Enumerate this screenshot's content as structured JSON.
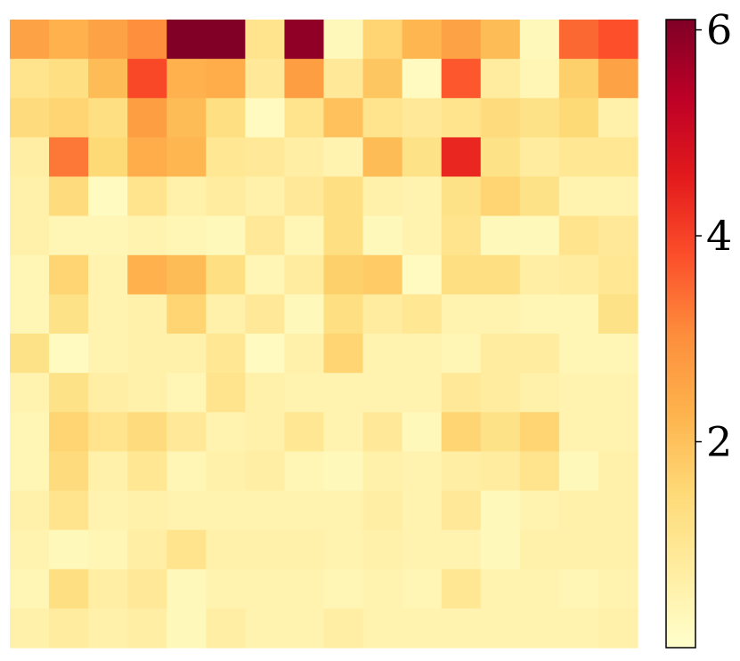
{
  "chart_data": {
    "type": "heatmap",
    "colormap": "YlOrRd",
    "rows": 16,
    "cols": 16,
    "vmin": 0,
    "vmax": 6.1,
    "colorbar": {
      "ticks": [
        2,
        4,
        6
      ],
      "tick_labels": [
        "2",
        "4",
        "6"
      ]
    },
    "values": [
      [
        2.6,
        2.3,
        2.6,
        3.0,
        6.1,
        6.1,
        1.1,
        5.9,
        0.3,
        1.6,
        2.2,
        2.6,
        2.1,
        0.3,
        3.5,
        3.8
      ],
      [
        1.1,
        1.3,
        2.1,
        3.9,
        2.3,
        2.4,
        0.9,
        2.7,
        0.9,
        1.9,
        0.2,
        3.7,
        0.8,
        0.4,
        1.7,
        2.6
      ],
      [
        1.4,
        1.6,
        1.3,
        2.7,
        2.1,
        1.3,
        0.2,
        1.1,
        2.0,
        1.1,
        0.9,
        1.1,
        1.4,
        1.2,
        1.5,
        0.6
      ],
      [
        0.7,
        3.3,
        1.5,
        2.4,
        2.2,
        1.0,
        0.9,
        0.7,
        0.5,
        2.1,
        1.2,
        4.4,
        1.2,
        0.8,
        1.0,
        1.0
      ],
      [
        0.6,
        1.4,
        0.2,
        1.1,
        0.6,
        0.8,
        0.6,
        0.9,
        1.3,
        0.6,
        0.5,
        1.2,
        1.6,
        1.2,
        0.5,
        0.5
      ],
      [
        0.6,
        0.4,
        0.4,
        0.5,
        0.4,
        0.3,
        0.9,
        0.4,
        1.3,
        0.3,
        0.5,
        1.1,
        0.3,
        0.3,
        1.1,
        0.9
      ],
      [
        0.4,
        1.6,
        0.5,
        2.3,
        2.1,
        1.3,
        0.4,
        0.8,
        1.7,
        1.8,
        0.2,
        1.3,
        1.3,
        0.7,
        0.8,
        1.0
      ],
      [
        0.4,
        1.2,
        0.5,
        0.6,
        1.6,
        0.6,
        0.9,
        0.3,
        1.3,
        0.8,
        1.0,
        0.5,
        0.5,
        0.4,
        0.4,
        1.2
      ],
      [
        1.2,
        0.2,
        0.5,
        0.6,
        0.6,
        1.0,
        0.2,
        0.6,
        1.6,
        0.5,
        0.5,
        0.4,
        0.8,
        0.8,
        0.4,
        0.4
      ],
      [
        0.5,
        1.2,
        0.7,
        0.6,
        0.4,
        1.1,
        0.6,
        0.5,
        0.5,
        0.5,
        0.5,
        0.9,
        0.8,
        0.6,
        0.5,
        0.5
      ],
      [
        0.4,
        1.6,
        1.1,
        1.4,
        0.9,
        0.5,
        0.6,
        1.0,
        0.5,
        0.9,
        0.3,
        1.6,
        1.2,
        1.6,
        0.5,
        0.5
      ],
      [
        0.4,
        1.4,
        0.6,
        1.0,
        0.4,
        0.6,
        0.7,
        0.4,
        0.3,
        0.6,
        0.5,
        0.7,
        0.8,
        1.1,
        0.3,
        0.6
      ],
      [
        0.6,
        1.1,
        0.5,
        0.6,
        0.5,
        0.5,
        0.5,
        0.5,
        0.5,
        0.7,
        0.5,
        0.9,
        0.3,
        0.5,
        0.6,
        0.6
      ],
      [
        0.5,
        0.3,
        0.4,
        0.7,
        1.1,
        0.6,
        0.6,
        0.6,
        0.5,
        0.6,
        0.5,
        0.5,
        0.3,
        0.6,
        0.6,
        0.6
      ],
      [
        0.4,
        1.3,
        0.7,
        0.9,
        0.3,
        0.5,
        0.5,
        0.5,
        0.4,
        0.5,
        0.4,
        1.0,
        0.5,
        0.5,
        0.4,
        0.5
      ],
      [
        0.6,
        0.8,
        0.6,
        0.7,
        0.3,
        0.7,
        0.5,
        0.5,
        0.7,
        0.5,
        0.5,
        0.5,
        0.5,
        0.5,
        0.5,
        0.6
      ]
    ]
  }
}
